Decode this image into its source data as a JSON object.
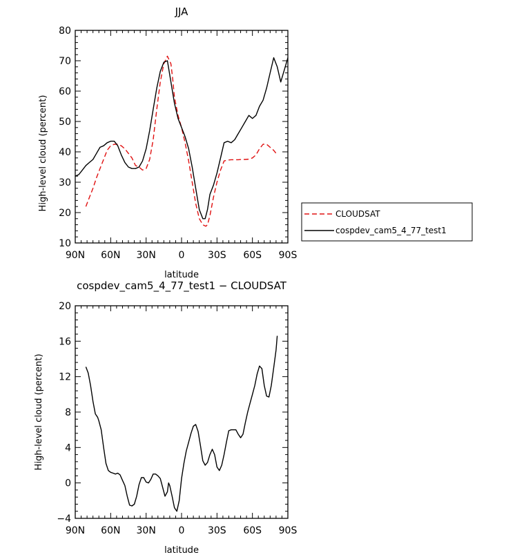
{
  "chart_data": [
    {
      "type": "line",
      "title": "JJA",
      "xlabel": "latitude",
      "ylabel": "High-level cloud (percent)",
      "xlim": [
        90,
        -90
      ],
      "ylim": [
        10,
        80
      ],
      "x_ticks": [
        90,
        60,
        30,
        0,
        -30,
        -60,
        -90
      ],
      "x_tick_labels": [
        "90N",
        "60N",
        "30N",
        "0",
        "30S",
        "60S",
        "90S"
      ],
      "y_ticks": [
        10,
        20,
        30,
        40,
        50,
        60,
        70,
        80
      ],
      "y_tick_labels": [
        "10",
        "20",
        "30",
        "40",
        "50",
        "60",
        "70",
        "80"
      ],
      "legend_position": "right",
      "series": [
        {
          "name": "CLOUDSAT",
          "color": "#e01010",
          "dash": "dashed",
          "x": [
            81,
            78,
            75,
            72,
            69,
            66,
            63,
            60,
            57,
            54,
            51,
            48,
            45,
            42,
            39,
            36,
            33,
            30,
            27,
            24,
            21,
            18,
            15,
            12,
            9,
            7.5,
            6,
            3,
            0,
            -3,
            -6,
            -9,
            -12,
            -15,
            -18,
            -20.5,
            -22,
            -24,
            -27,
            -30,
            -33,
            -36,
            -39,
            -42,
            -45,
            -48,
            -51,
            -54,
            -57,
            -60,
            -63,
            -66,
            -69,
            -72,
            -75,
            -78,
            -81
          ],
          "y": [
            22,
            25,
            28,
            31.5,
            34.5,
            37.5,
            40.5,
            42,
            42.5,
            42.5,
            42,
            41,
            39.5,
            38,
            35.5,
            35,
            34,
            34.5,
            37.5,
            44,
            54,
            63,
            69,
            71.5,
            69,
            64,
            58,
            52,
            48,
            43,
            37,
            30,
            23,
            18,
            16,
            15.5,
            16,
            19,
            25,
            30,
            34,
            37,
            37.3,
            37.4,
            37.4,
            37.4,
            37.5,
            37.5,
            37.6,
            38,
            39,
            41,
            42.5,
            42.5,
            41.5,
            40.5,
            39
          ]
        },
        {
          "name": "cospdev_cam5_4_77_test1",
          "color": "#000000",
          "dash": "solid",
          "x": [
            90,
            87,
            84,
            81,
            78,
            75,
            72,
            69,
            66,
            63,
            60,
            57,
            54,
            51,
            48,
            45,
            42,
            39,
            36,
            33,
            30,
            27,
            24,
            21,
            18,
            15,
            12,
            9,
            6,
            3,
            0,
            -3,
            -6,
            -9,
            -12,
            -15,
            -18,
            -20,
            -22,
            -24,
            -27,
            -30,
            -33,
            -36,
            -39,
            -42,
            -45,
            -48,
            -51,
            -54,
            -57,
            -60,
            -63,
            -66,
            -69,
            -72,
            -75,
            -78,
            -81,
            -84,
            -87,
            -90
          ],
          "y": [
            32,
            32.5,
            34,
            35.5,
            36.5,
            37.5,
            39.5,
            41.5,
            42,
            43,
            43.5,
            43.5,
            42,
            39,
            36.5,
            35,
            34.5,
            34.5,
            35,
            37,
            41,
            47,
            54,
            61,
            66.5,
            69.5,
            70,
            63,
            56,
            51,
            48,
            45,
            41,
            35,
            28,
            21,
            18,
            18,
            21,
            26,
            29,
            33,
            38,
            43,
            43.5,
            43,
            44,
            46,
            48,
            50,
            52,
            51,
            52,
            55,
            57,
            61,
            66,
            71,
            68,
            63,
            67,
            71
          ]
        }
      ]
    },
    {
      "type": "line",
      "title": "cospdev_cam5_4_77_test1 − CLOUDSAT",
      "xlabel": "latitude",
      "ylabel": "High-level cloud (percent)",
      "xlim": [
        90,
        -90
      ],
      "ylim": [
        -4,
        20
      ],
      "x_ticks": [
        90,
        60,
        30,
        0,
        -30,
        -60,
        -90
      ],
      "x_tick_labels": [
        "90N",
        "60N",
        "30N",
        "0",
        "30S",
        "60S",
        "90S"
      ],
      "y_ticks": [
        -4,
        0,
        4,
        8,
        12,
        16,
        20
      ],
      "y_tick_labels": [
        "−4",
        "0",
        "4",
        "8",
        "12",
        "16",
        "20"
      ],
      "series": [
        {
          "name": "",
          "color": "#000000",
          "dash": "solid",
          "x": [
            81,
            79,
            77,
            75,
            73,
            71,
            70,
            68,
            66,
            64,
            62,
            60,
            58,
            56,
            54,
            52,
            50,
            48,
            46,
            44,
            42,
            40,
            38,
            36,
            34,
            32,
            30,
            28,
            26,
            24,
            22,
            20,
            18,
            16,
            14,
            12,
            11,
            10,
            8,
            6,
            4,
            2,
            0,
            -2,
            -4,
            -6,
            -8,
            -10,
            -12,
            -14,
            -16,
            -18,
            -20,
            -22,
            -24,
            -26,
            -28,
            -30,
            -32,
            -34,
            -36,
            -38,
            -40,
            -42,
            -44,
            -46,
            -48,
            -50,
            -52,
            -54,
            -56,
            -58,
            -60,
            -62,
            -64,
            -66,
            -68,
            -70,
            -72,
            -74,
            -76,
            -78,
            -80,
            -81
          ],
          "y": [
            13.1,
            12.4,
            11,
            9.2,
            7.8,
            7.4,
            7,
            6,
            4,
            2.2,
            1.4,
            1.2,
            1.1,
            1,
            1.1,
            0.9,
            0.3,
            -0.3,
            -1.5,
            -2.5,
            -2.6,
            -2.4,
            -1.5,
            -0.2,
            0.6,
            0.6,
            0.1,
            0,
            0.4,
            1,
            1,
            0.8,
            0.5,
            -0.5,
            -1.5,
            -1,
            0,
            -0.3,
            -1.5,
            -2.8,
            -3.2,
            -2,
            0.5,
            2.2,
            3.6,
            4.6,
            5.6,
            6.4,
            6.6,
            5.8,
            4.2,
            2.5,
            2,
            2.3,
            3.2,
            3.8,
            3.2,
            1.8,
            1.4,
            2,
            3.2,
            4.6,
            5.9,
            6,
            6,
            6,
            5.5,
            5.1,
            5.5,
            6.8,
            8,
            9,
            10,
            11,
            12.3,
            13.2,
            12.9,
            11,
            9.8,
            9.7,
            11,
            13,
            15,
            16.6
          ]
        }
      ]
    }
  ]
}
